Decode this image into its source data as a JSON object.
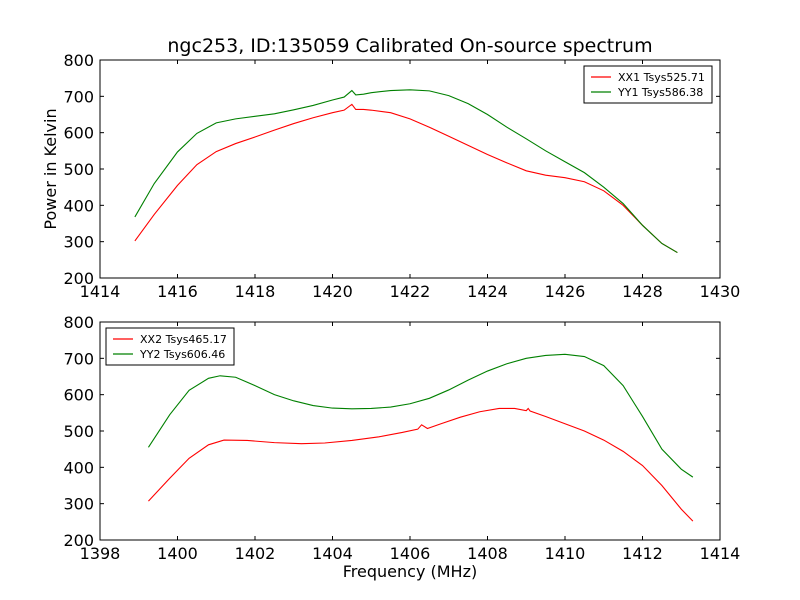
{
  "chart_data": [
    {
      "type": "line",
      "title": "ngc253, ID:135059 Calibrated On-source spectrum",
      "xlabel": "",
      "ylabel": "Power in Kelvin",
      "xlim": [
        1414,
        1430
      ],
      "ylim": [
        200,
        800
      ],
      "xticks": [
        1414,
        1416,
        1418,
        1420,
        1422,
        1424,
        1426,
        1428,
        1430
      ],
      "yticks": [
        200,
        300,
        400,
        500,
        600,
        700,
        800
      ],
      "grid": false,
      "legend": "top-right",
      "series": [
        {
          "name": "XX1 Tsys525.71",
          "color": "#ff0000",
          "x": [
            1414.9,
            1415.4,
            1416.0,
            1416.5,
            1417.0,
            1417.5,
            1418.0,
            1418.5,
            1419.0,
            1419.5,
            1420.0,
            1420.3,
            1420.5,
            1420.6,
            1420.8,
            1421.0,
            1421.5,
            1422.0,
            1422.5,
            1423.0,
            1423.5,
            1424.0,
            1424.5,
            1425.0,
            1425.5,
            1426.0,
            1426.5,
            1427.0,
            1427.5,
            1428.0,
            1428.5,
            1428.9
          ],
          "y": [
            302,
            375,
            455,
            512,
            548,
            570,
            588,
            607,
            625,
            641,
            655,
            662,
            678,
            664,
            664,
            662,
            655,
            638,
            615,
            590,
            565,
            540,
            517,
            495,
            483,
            476,
            465,
            440,
            400,
            345,
            295,
            270
          ]
        },
        {
          "name": "YY1 Tsys586.38",
          "color": "#008000",
          "x": [
            1414.9,
            1415.4,
            1416.0,
            1416.5,
            1417.0,
            1417.5,
            1418.0,
            1418.5,
            1419.0,
            1419.5,
            1420.0,
            1420.3,
            1420.5,
            1420.6,
            1420.8,
            1421.0,
            1421.5,
            1422.0,
            1422.5,
            1423.0,
            1423.5,
            1424.0,
            1424.5,
            1425.0,
            1425.5,
            1426.0,
            1426.5,
            1427.0,
            1427.5,
            1428.0,
            1428.5,
            1428.9
          ],
          "y": [
            368,
            460,
            547,
            598,
            627,
            638,
            645,
            652,
            663,
            675,
            690,
            698,
            716,
            704,
            706,
            710,
            716,
            718,
            715,
            702,
            680,
            650,
            615,
            583,
            550,
            520,
            490,
            450,
            405,
            345,
            295,
            270
          ]
        }
      ]
    },
    {
      "type": "line",
      "title": "",
      "xlabel": "Frequency (MHz)",
      "ylabel": "",
      "xlim": [
        1398,
        1414
      ],
      "ylim": [
        200,
        800
      ],
      "xticks": [
        1398,
        1400,
        1402,
        1404,
        1406,
        1408,
        1410,
        1412,
        1414
      ],
      "yticks": [
        200,
        300,
        400,
        500,
        600,
        700,
        800
      ],
      "grid": false,
      "legend": "top-left",
      "series": [
        {
          "name": "XX2 Tsys465.17",
          "color": "#ff0000",
          "x": [
            1399.25,
            1399.8,
            1400.3,
            1400.8,
            1401.2,
            1401.8,
            1402.5,
            1403.2,
            1403.8,
            1404.5,
            1405.2,
            1405.8,
            1406.2,
            1406.3,
            1406.45,
            1406.8,
            1407.3,
            1407.8,
            1408.3,
            1408.7,
            1409.0,
            1409.05,
            1409.1,
            1409.5,
            1410.0,
            1410.5,
            1411.0,
            1411.5,
            1412.0,
            1412.5,
            1413.0,
            1413.3
          ],
          "y": [
            307,
            370,
            425,
            462,
            475,
            474,
            468,
            465,
            467,
            474,
            484,
            496,
            505,
            517,
            507,
            520,
            538,
            553,
            562,
            562,
            556,
            562,
            555,
            540,
            520,
            500,
            475,
            444,
            405,
            350,
            285,
            252
          ]
        },
        {
          "name": "YY2 Tsys606.46",
          "color": "#008000",
          "x": [
            1399.25,
            1399.8,
            1400.3,
            1400.8,
            1401.1,
            1401.5,
            1402.0,
            1402.5,
            1403.0,
            1403.5,
            1404.0,
            1404.5,
            1405.0,
            1405.5,
            1406.0,
            1406.5,
            1407.0,
            1407.5,
            1408.0,
            1408.5,
            1409.0,
            1409.5,
            1410.0,
            1410.5,
            1411.0,
            1411.5,
            1412.0,
            1412.5,
            1413.0,
            1413.3
          ],
          "y": [
            455,
            545,
            612,
            645,
            652,
            648,
            625,
            600,
            583,
            570,
            563,
            561,
            562,
            566,
            575,
            590,
            613,
            640,
            665,
            685,
            700,
            708,
            711,
            705,
            680,
            625,
            540,
            450,
            395,
            373
          ]
        }
      ]
    }
  ]
}
